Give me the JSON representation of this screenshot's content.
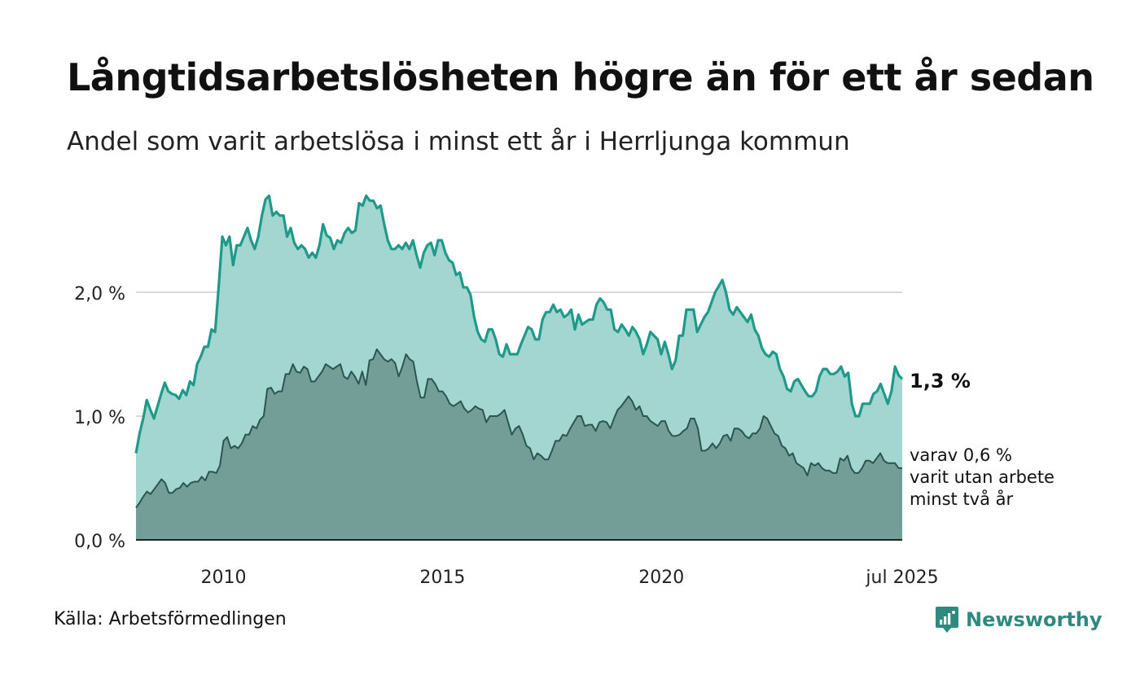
{
  "title": "Långtidsarbetslösheten högre än för ett år sedan",
  "subtitle": "Andel som varit arbetslösa i minst ett år i Herrljunga kommun",
  "source": "Källa: Arbetsförmedlingen",
  "brand": "Newsworthy",
  "colors": {
    "upper_line": "#1f9a8a",
    "upper_fill": "#a3d6d0",
    "lower_line": "#2b5550",
    "lower_fill": "#739e98",
    "grid": "#d9d9d9",
    "axis": "#222222",
    "brand": "#2e8a7e"
  },
  "chart_data": {
    "type": "area",
    "x_start": "2008-01",
    "x_end": "2025-07",
    "x_frequency": "monthly",
    "x_ticks": [
      "2010",
      "2015",
      "2020",
      "jul 2025"
    ],
    "x_tick_dates": [
      "2010-01",
      "2015-01",
      "2020-01",
      "2025-07"
    ],
    "y_ticks": [
      "0,0 %",
      "1,0 %",
      "2,0 %"
    ],
    "y_tick_values": [
      0,
      1,
      2
    ],
    "ylim": [
      0,
      2.9
    ],
    "grid": true,
    "labels": {
      "upper_end": "1,3 %",
      "lower_end": [
        "varav 0,6 %",
        "varit utan arbete",
        "minst två år"
      ]
    },
    "series": [
      {
        "key": "minst-ett-ar",
        "values": [
          0.7,
          0.86,
          0.98,
          1.13,
          1.05,
          0.98,
          1.08,
          1.18,
          1.27,
          1.2,
          1.18,
          1.17,
          1.14,
          1.21,
          1.17,
          1.28,
          1.25,
          1.42,
          1.48,
          1.56,
          1.56,
          1.7,
          1.68,
          2.05,
          2.45,
          2.38,
          2.45,
          2.22,
          2.38,
          2.38,
          2.45,
          2.52,
          2.42,
          2.35,
          2.45,
          2.62,
          2.75,
          2.78,
          2.62,
          2.65,
          2.62,
          2.62,
          2.45,
          2.52,
          2.4,
          2.35,
          2.38,
          2.35,
          2.28,
          2.32,
          2.28,
          2.38,
          2.55,
          2.46,
          2.44,
          2.35,
          2.42,
          2.4,
          2.48,
          2.52,
          2.48,
          2.5,
          2.72,
          2.7,
          2.78,
          2.74,
          2.74,
          2.68,
          2.7,
          2.55,
          2.42,
          2.35,
          2.35,
          2.38,
          2.35,
          2.4,
          2.35,
          2.42,
          2.3,
          2.2,
          2.32,
          2.38,
          2.4,
          2.3,
          2.42,
          2.42,
          2.32,
          2.26,
          2.24,
          2.14,
          2.16,
          2.04,
          2.04,
          1.98,
          1.8,
          1.68,
          1.62,
          1.6,
          1.7,
          1.7,
          1.62,
          1.5,
          1.48,
          1.58,
          1.5,
          1.5,
          1.5,
          1.58,
          1.65,
          1.72,
          1.7,
          1.62,
          1.62,
          1.78,
          1.84,
          1.84,
          1.9,
          1.84,
          1.86,
          1.8,
          1.82,
          1.86,
          1.7,
          1.82,
          1.74,
          1.76,
          1.78,
          1.78,
          1.9,
          1.95,
          1.92,
          1.86,
          1.86,
          1.7,
          1.68,
          1.74,
          1.7,
          1.65,
          1.72,
          1.68,
          1.62,
          1.5,
          1.58,
          1.68,
          1.65,
          1.62,
          1.5,
          1.6,
          1.5,
          1.38,
          1.45,
          1.65,
          1.65,
          1.86,
          1.86,
          1.86,
          1.68,
          1.74,
          1.8,
          1.84,
          1.92,
          2.0,
          2.05,
          2.1,
          2.0,
          1.86,
          1.82,
          1.88,
          1.84,
          1.8,
          1.76,
          1.82,
          1.7,
          1.65,
          1.55,
          1.5,
          1.48,
          1.52,
          1.5,
          1.38,
          1.32,
          1.22,
          1.2,
          1.28,
          1.3,
          1.25,
          1.2,
          1.16,
          1.16,
          1.2,
          1.32,
          1.38,
          1.38,
          1.34,
          1.34,
          1.36,
          1.4,
          1.32,
          1.35,
          1.1,
          1.0,
          1.0,
          1.1,
          1.1,
          1.1,
          1.18,
          1.2,
          1.26,
          1.18,
          1.1,
          1.2,
          1.4,
          1.33,
          1.3
        ]
      },
      {
        "key": "minst-tva-ar",
        "values": [
          0.26,
          0.3,
          0.35,
          0.39,
          0.37,
          0.41,
          0.45,
          0.49,
          0.46,
          0.38,
          0.38,
          0.41,
          0.42,
          0.46,
          0.43,
          0.46,
          0.47,
          0.47,
          0.51,
          0.48,
          0.55,
          0.55,
          0.54,
          0.6,
          0.8,
          0.83,
          0.74,
          0.76,
          0.74,
          0.78,
          0.85,
          0.85,
          0.92,
          0.9,
          0.97,
          1.0,
          1.22,
          1.23,
          1.18,
          1.2,
          1.2,
          1.34,
          1.34,
          1.42,
          1.36,
          1.35,
          1.4,
          1.38,
          1.28,
          1.28,
          1.32,
          1.36,
          1.42,
          1.4,
          1.38,
          1.4,
          1.42,
          1.32,
          1.3,
          1.36,
          1.32,
          1.26,
          1.36,
          1.25,
          1.45,
          1.46,
          1.54,
          1.5,
          1.46,
          1.44,
          1.46,
          1.43,
          1.32,
          1.4,
          1.5,
          1.46,
          1.44,
          1.28,
          1.15,
          1.15,
          1.3,
          1.3,
          1.26,
          1.2,
          1.2,
          1.16,
          1.1,
          1.08,
          1.1,
          1.12,
          1.06,
          1.03,
          1.05,
          1.08,
          1.06,
          1.05,
          0.95,
          1.0,
          1.0,
          1.0,
          1.02,
          1.05,
          0.95,
          0.85,
          0.9,
          0.92,
          0.85,
          0.76,
          0.74,
          0.65,
          0.7,
          0.68,
          0.65,
          0.65,
          0.72,
          0.8,
          0.8,
          0.85,
          0.84,
          0.9,
          0.95,
          1.0,
          1.0,
          0.92,
          0.93,
          0.93,
          0.88,
          0.95,
          0.96,
          0.95,
          0.9,
          0.98,
          1.05,
          1.08,
          1.12,
          1.16,
          1.12,
          1.05,
          1.08,
          1.0,
          1.0,
          0.96,
          0.94,
          0.92,
          0.96,
          0.96,
          0.88,
          0.84,
          0.84,
          0.85,
          0.88,
          0.9,
          0.98,
          0.98,
          0.9,
          0.72,
          0.72,
          0.74,
          0.78,
          0.74,
          0.78,
          0.84,
          0.85,
          0.8,
          0.9,
          0.9,
          0.88,
          0.84,
          0.82,
          0.86,
          0.86,
          0.9,
          1.0,
          0.98,
          0.92,
          0.86,
          0.84,
          0.76,
          0.74,
          0.68,
          0.7,
          0.62,
          0.6,
          0.58,
          0.52,
          0.62,
          0.6,
          0.62,
          0.58,
          0.56,
          0.56,
          0.54,
          0.54,
          0.66,
          0.64,
          0.68,
          0.58,
          0.54,
          0.54,
          0.58,
          0.64,
          0.64,
          0.62,
          0.66,
          0.7,
          0.64,
          0.62,
          0.62,
          0.62,
          0.58,
          0.58
        ]
      }
    ]
  }
}
